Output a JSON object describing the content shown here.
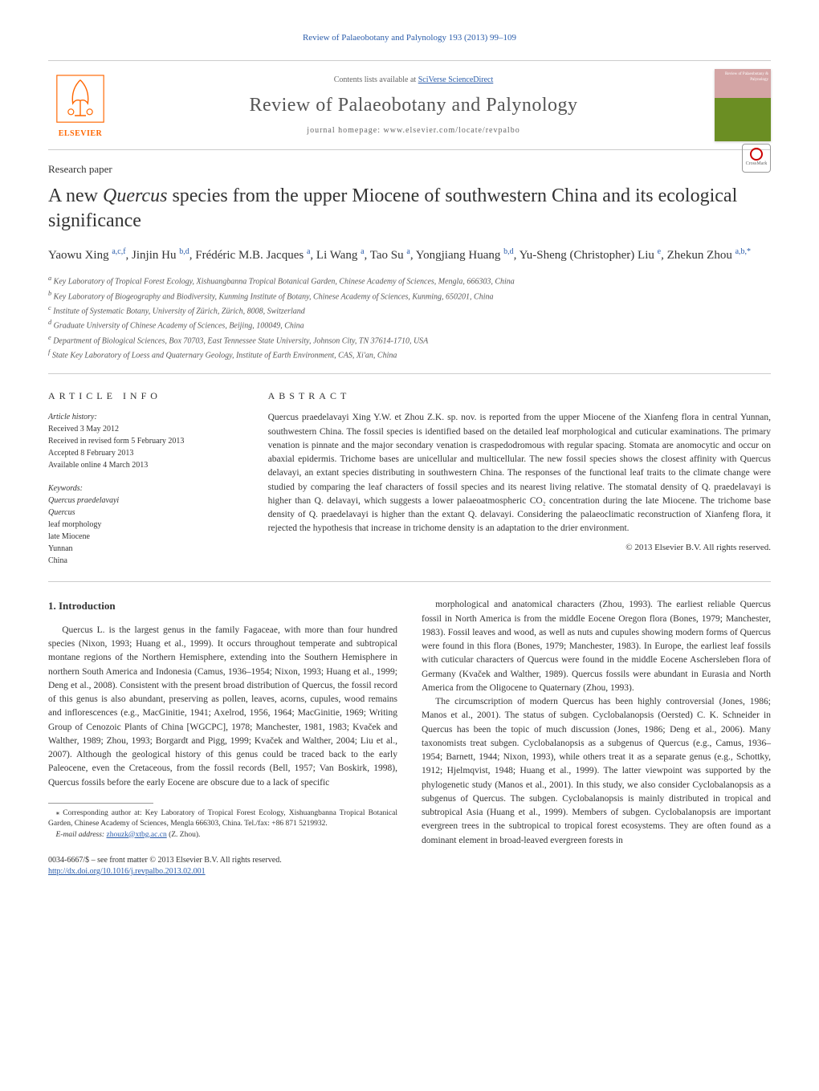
{
  "banner": {
    "text_prefix": "Review of Palaeobotany and Palynology 193 (2013) 99–109"
  },
  "header": {
    "contents_prefix": "Contents lists available at ",
    "contents_link": "SciVerse ScienceDirect",
    "journal_title": "Review of Palaeobotany and Palynology",
    "homepage_prefix": "journal homepage: ",
    "homepage_url": "www.elsevier.com/locate/revpalbo",
    "elsevier_label": "ELSEVIER",
    "cover_text": "Review of Palaeobotany & Palynology",
    "crossmark": "CrossMark"
  },
  "paper": {
    "type_label": "Research paper",
    "title_prefix": "A new ",
    "title_italic": "Quercus",
    "title_suffix": " species from the upper Miocene of southwestern China and its ecological significance",
    "authors_html": "Yaowu Xing <sup>a,c,f</sup>, Jinjin Hu <sup>b,d</sup>, Frédéric M.B. Jacques <sup>a</sup>, Li Wang <sup>a</sup>, Tao Su <sup>a</sup>, Yongjiang Huang <sup>b,d</sup>, Yu-Sheng (Christopher) Liu <sup>e</sup>, Zhekun Zhou <sup>a,b,*</sup>"
  },
  "affiliations": [
    "a Key Laboratory of Tropical Forest Ecology, Xishuangbanna Tropical Botanical Garden, Chinese Academy of Sciences, Mengla, 666303, China",
    "b Key Laboratory of Biogeography and Biodiversity, Kunming Institute of Botany, Chinese Academy of Sciences, Kunming, 650201, China",
    "c Institute of Systematic Botany, University of Zürich, Zürich, 8008, Switzerland",
    "d Graduate University of Chinese Academy of Sciences, Beijing, 100049, China",
    "e Department of Biological Sciences, Box 70703, East Tennessee State University, Johnson City, TN 37614-1710, USA",
    "f State Key Laboratory of Loess and Quaternary Geology, Institute of Earth Environment, CAS, Xi'an, China"
  ],
  "article_info": {
    "heading": "ARTICLE INFO",
    "history_label": "Article history:",
    "history": [
      "Received 3 May 2012",
      "Received in revised form 5 February 2013",
      "Accepted 8 February 2013",
      "Available online 4 March 2013"
    ],
    "keywords_label": "Keywords:",
    "keywords": [
      "Quercus praedelavayi",
      "Quercus",
      "leaf morphology",
      "late Miocene",
      "Yunnan",
      "China"
    ]
  },
  "abstract": {
    "heading": "ABSTRACT",
    "text": "Quercus praedelavayi Xing Y.W. et Zhou Z.K. sp. nov. is reported from the upper Miocene of the Xianfeng flora in central Yunnan, southwestern China. The fossil species is identified based on the detailed leaf morphological and cuticular examinations. The primary venation is pinnate and the major secondary venation is craspedodromous with regular spacing. Stomata are anomocytic and occur on abaxial epidermis. Trichome bases are unicellular and multicellular. The new fossil species shows the closest affinity with Quercus delavayi, an extant species distributing in southwestern China. The responses of the functional leaf traits to the climate change were studied by comparing the leaf characters of fossil species and its nearest living relative. The stomatal density of Q. praedelavayi is higher than Q. delavayi, which suggests a lower palaeoatmospheric CO₂ concentration during the late Miocene. The trichome base density of Q. praedelavayi is higher than the extant Q. delavayi. Considering the palaeoclimatic reconstruction of Xianfeng flora, it rejected the hypothesis that increase in trichome density is an adaptation to the drier environment.",
    "copyright": "© 2013 Elsevier B.V. All rights reserved."
  },
  "body": {
    "intro_heading": "1. Introduction",
    "left_paras": [
      "Quercus L. is the largest genus in the family Fagaceae, with more than four hundred species (Nixon, 1993; Huang et al., 1999). It occurs throughout temperate and subtropical montane regions of the Northern Hemisphere, extending into the Southern Hemisphere in northern South America and Indonesia (Camus, 1936–1954; Nixon, 1993; Huang et al., 1999; Deng et al., 2008). Consistent with the present broad distribution of Quercus, the fossil record of this genus is also abundant, preserving as pollen, leaves, acorns, cupules, wood remains and inflorescences (e.g., MacGinitie, 1941; Axelrod, 1956, 1964; MacGinitie, 1969; Writing Group of Cenozoic Plants of China [WGCPC], 1978; Manchester, 1981, 1983; Kvaček and Walther, 1989; Zhou, 1993; Borgardt and Pigg, 1999; Kvaček and Walther, 2004; Liu et al., 2007). Although the geological history of this genus could be traced back to the early Paleocene, even the Cretaceous, from the fossil records (Bell, 1957; Van Boskirk, 1998), Quercus fossils before the early Eocene are obscure due to a lack of specific"
    ],
    "right_paras": [
      "morphological and anatomical characters (Zhou, 1993). The earliest reliable Quercus fossil in North America is from the middle Eocene Oregon flora (Bones, 1979; Manchester, 1983). Fossil leaves and wood, as well as nuts and cupules showing modern forms of Quercus were found in this flora (Bones, 1979; Manchester, 1983). In Europe, the earliest leaf fossils with cuticular characters of Quercus were found in the middle Eocene Aschersleben flora of Germany (Kvaček and Walther, 1989). Quercus fossils were abundant in Eurasia and North America from the Oligocene to Quaternary (Zhou, 1993).",
      "The circumscription of modern Quercus has been highly controversial (Jones, 1986; Manos et al., 2001). The status of subgen. Cyclobalanopsis (Oersted) C. K. Schneider in Quercus has been the topic of much discussion (Jones, 1986; Deng et al., 2006). Many taxonomists treat subgen. Cyclobalanopsis as a subgenus of Quercus (e.g., Camus, 1936–1954; Barnett, 1944; Nixon, 1993), while others treat it as a separate genus (e.g., Schottky, 1912; Hjelmqvist, 1948; Huang et al., 1999). The latter viewpoint was supported by the phylogenetic study (Manos et al., 2001). In this study, we also consider Cyclobalanopsis as a subgenus of Quercus. The subgen. Cyclobalanopsis is mainly distributed in tropical and subtropical Asia (Huang et al., 1999). Members of subgen. Cyclobalanopsis are important evergreen trees in the subtropical to tropical forest ecosystems. They are often found as a dominant element in broad-leaved evergreen forests in"
    ]
  },
  "footnotes": {
    "corresponding": "⁎ Corresponding author at: Key Laboratory of Tropical Forest Ecology, Xishuangbanna Tropical Botanical Garden, Chinese Academy of Sciences, Mengla 666303, China. Tel./fax: +86 871 5219932.",
    "email_label": "E-mail address: ",
    "email": "zhouzk@xtbg.ac.cn",
    "email_suffix": " (Z. Zhou)."
  },
  "footer": {
    "issn_line": "0034-6667/$ – see front matter © 2013 Elsevier B.V. All rights reserved.",
    "doi": "http://dx.doi.org/10.1016/j.revpalbo.2013.02.001"
  },
  "colors": {
    "link": "#2a5caa",
    "text": "#333333",
    "muted": "#666666",
    "border": "#cccccc",
    "elsevier_orange": "#ff6600"
  }
}
